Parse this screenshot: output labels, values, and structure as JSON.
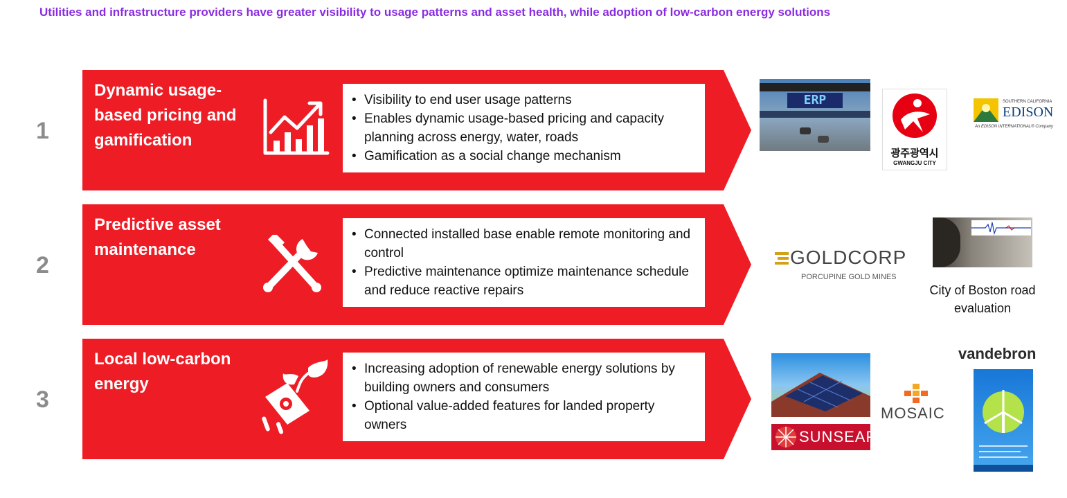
{
  "headline": "Utilities and infrastructure providers have greater visibility to usage patterns and asset health, while adoption of low-carbon energy solutions",
  "colors": {
    "band_red": "#ee1c25",
    "headline_purple": "#8a2be2",
    "number_grey": "#8c8c8c"
  },
  "rows": [
    {
      "number": "1",
      "title": "Dynamic usage-based pricing and gamification",
      "icon": "growth-chart-icon",
      "bullets": [
        "Visibility to end user usage patterns",
        "Enables dynamic usage-based pricing and capacity planning across energy, water, roads",
        "Gamification as a social change mechanism"
      ]
    },
    {
      "number": "2",
      "title": "Predictive asset maintenance",
      "icon": "tools-icon",
      "bullets": [
        "Connected installed base enable remote monitoring and control",
        "Predictive maintenance optimize maintenance schedule and reduce reactive repairs"
      ]
    },
    {
      "number": "3",
      "title": "Local low-carbon energy",
      "icon": "eco-plug-icon",
      "bullets": [
        "Increasing adoption of renewable energy solutions by building owners and consumers",
        "Optional value-added features for landed property owners"
      ]
    }
  ],
  "logos": {
    "erp_sign": "ERP",
    "gwangju_korean": "광주광역시",
    "gwangju_english": "GWANGJU CITY",
    "edison_top": "SOUTHERN CALIFORNIA",
    "edison_name": "EDISON",
    "edison_sub": "An EDISON INTERNATIONAL® Company",
    "goldcorp_name": "GOLDCORP",
    "goldcorp_sub": "PORCUPINE GOLD MINES",
    "boston_caption": "City of Boston road evaluation",
    "sunseap": "SUNSEAP",
    "mosaic": "MOSAIC",
    "vandebron": "vandebron"
  }
}
